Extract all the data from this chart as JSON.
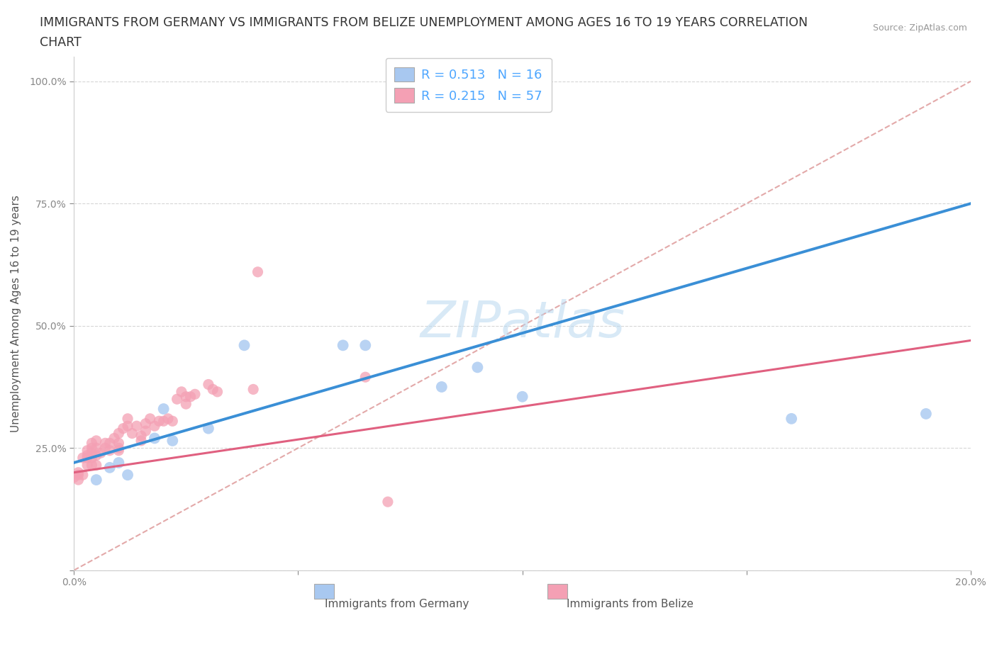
{
  "title_line1": "IMMIGRANTS FROM GERMANY VS IMMIGRANTS FROM BELIZE UNEMPLOYMENT AMONG AGES 16 TO 19 YEARS CORRELATION",
  "title_line2": "CHART",
  "source": "Source: ZipAtlas.com",
  "ylabel": "Unemployment Among Ages 16 to 19 years",
  "xlim": [
    0.0,
    0.2
  ],
  "ylim": [
    0.0,
    1.05
  ],
  "xticks": [
    0.0,
    0.05,
    0.1,
    0.15,
    0.2
  ],
  "xticklabels": [
    "0.0%",
    "",
    "",
    "",
    "20.0%"
  ],
  "yticks": [
    0.0,
    0.25,
    0.5,
    0.75,
    1.0
  ],
  "yticklabels": [
    "",
    "25.0%",
    "50.0%",
    "75.0%",
    "100.0%"
  ],
  "germany_color": "#a8c8f0",
  "belize_color": "#f4a0b4",
  "germany_line_color": "#3a8fd6",
  "belize_line_color": "#e06080",
  "ref_line_color": "#e0a0a0",
  "watermark": "ZIPatlas",
  "legend_r_germany": "R = 0.513",
  "legend_n_germany": "N = 16",
  "legend_r_belize": "R = 0.215",
  "legend_n_belize": "N = 57",
  "germany_x": [
    0.005,
    0.008,
    0.01,
    0.012,
    0.018,
    0.02,
    0.022,
    0.03,
    0.038,
    0.06,
    0.065,
    0.082,
    0.09,
    0.1,
    0.16,
    0.19
  ],
  "germany_y": [
    0.185,
    0.21,
    0.22,
    0.195,
    0.27,
    0.33,
    0.265,
    0.29,
    0.46,
    0.46,
    0.46,
    0.375,
    0.415,
    0.355,
    0.31,
    0.32
  ],
  "belize_x": [
    0.0,
    0.001,
    0.001,
    0.001,
    0.002,
    0.002,
    0.003,
    0.003,
    0.003,
    0.003,
    0.004,
    0.004,
    0.004,
    0.004,
    0.004,
    0.005,
    0.005,
    0.005,
    0.005,
    0.006,
    0.007,
    0.007,
    0.008,
    0.008,
    0.009,
    0.01,
    0.01,
    0.01,
    0.01,
    0.011,
    0.012,
    0.012,
    0.013,
    0.014,
    0.015,
    0.015,
    0.016,
    0.016,
    0.017,
    0.018,
    0.019,
    0.02,
    0.021,
    0.022,
    0.023,
    0.024,
    0.025,
    0.025,
    0.026,
    0.027,
    0.03,
    0.031,
    0.032,
    0.04,
    0.041,
    0.065,
    0.07
  ],
  "belize_y": [
    0.19,
    0.185,
    0.195,
    0.2,
    0.195,
    0.23,
    0.215,
    0.23,
    0.235,
    0.245,
    0.215,
    0.23,
    0.24,
    0.25,
    0.26,
    0.215,
    0.235,
    0.25,
    0.265,
    0.24,
    0.25,
    0.26,
    0.245,
    0.26,
    0.27,
    0.245,
    0.25,
    0.26,
    0.28,
    0.29,
    0.295,
    0.31,
    0.28,
    0.295,
    0.265,
    0.275,
    0.285,
    0.3,
    0.31,
    0.295,
    0.305,
    0.305,
    0.31,
    0.305,
    0.35,
    0.365,
    0.34,
    0.355,
    0.355,
    0.36,
    0.38,
    0.37,
    0.365,
    0.37,
    0.61,
    0.395,
    0.14
  ],
  "germany_trend_x": [
    0.0,
    0.2
  ],
  "germany_trend_y": [
    0.22,
    0.75
  ],
  "belize_trend_x": [
    0.0,
    0.2
  ],
  "belize_trend_y": [
    0.2,
    0.47
  ],
  "title_color": "#333333",
  "title_fontsize": 12.5,
  "axis_label_fontsize": 11,
  "tick_fontsize": 10,
  "legend_text_color_rn": "#4da6ff",
  "yticklabel_color": "#4da6ff",
  "background_color": "#ffffff"
}
